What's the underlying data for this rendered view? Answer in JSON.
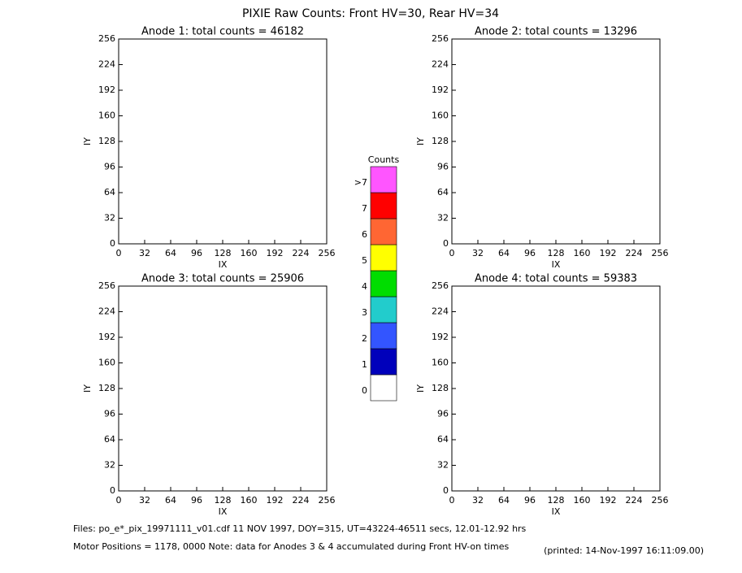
{
  "title": "PIXIE Raw Counts:  Front HV=30, Rear HV=34",
  "chart_data": [
    {
      "type": "heatmap",
      "title": "Anode 1: total counts = 46182",
      "xlabel": "IX",
      "ylabel": "IY",
      "xlim": [
        0,
        256
      ],
      "ylim": [
        0,
        256
      ],
      "xticks": [
        0,
        32,
        64,
        96,
        128,
        160,
        192,
        224,
        256
      ],
      "yticks": [
        0,
        32,
        64,
        96,
        128,
        160,
        192,
        224,
        256
      ]
    },
    {
      "type": "heatmap",
      "title": "Anode 2: total counts = 13296",
      "xlabel": "IX",
      "ylabel": "IY",
      "xlim": [
        0,
        256
      ],
      "ylim": [
        0,
        256
      ],
      "xticks": [
        0,
        32,
        64,
        96,
        128,
        160,
        192,
        224,
        256
      ],
      "yticks": [
        0,
        32,
        64,
        96,
        128,
        160,
        192,
        224,
        256
      ]
    },
    {
      "type": "heatmap",
      "title": "Anode 3: total counts = 25906",
      "xlabel": "IX",
      "ylabel": "IY",
      "xlim": [
        0,
        256
      ],
      "ylim": [
        0,
        256
      ],
      "xticks": [
        0,
        32,
        64,
        96,
        128,
        160,
        192,
        224,
        256
      ],
      "yticks": [
        0,
        32,
        64,
        96,
        128,
        160,
        192,
        224,
        256
      ]
    },
    {
      "type": "heatmap",
      "title": "Anode 4: total counts = 59383",
      "xlabel": "IX",
      "ylabel": "IY",
      "xlim": [
        0,
        256
      ],
      "ylim": [
        0,
        256
      ],
      "xticks": [
        0,
        32,
        64,
        96,
        128,
        160,
        192,
        224,
        256
      ],
      "yticks": [
        0,
        32,
        64,
        96,
        128,
        160,
        192,
        224,
        256
      ]
    }
  ],
  "colorbar": {
    "title": "Counts",
    "ticks": [
      0,
      1,
      2,
      3,
      4,
      5,
      6,
      7,
      {
        "value": 8,
        "label": ">7"
      }
    ],
    "colors": [
      "#ffffff",
      "#0000bb",
      "#3355ff",
      "#22cccc",
      "#00dd00",
      "#ffff00",
      "#ff6633",
      "#ff0000",
      "#ff55ff"
    ]
  },
  "footer": {
    "files": "Files: po_e*_pix_19971111_v01.cdf    11 NOV 1997, DOY=315, UT=43224-46511 secs, 12.01-12.92 hrs",
    "motor": "Motor Positions = 1178, 0000   Note: data for Anodes 3 & 4 accumulated during Front HV-on times",
    "printed": "(printed: 14-Nov-1997 16:11:09.00)"
  }
}
